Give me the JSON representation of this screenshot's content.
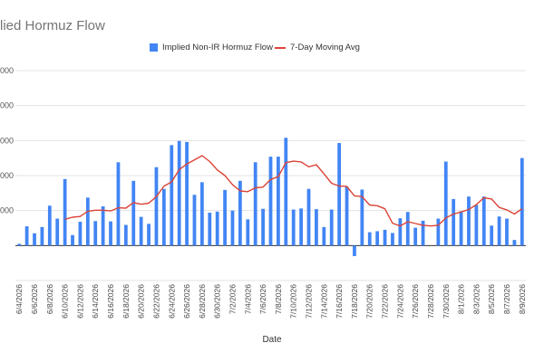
{
  "chart_data": {
    "type": "bar",
    "title": "lied Hormuz Flow",
    "xlabel": "Date",
    "ylabel": "",
    "y_tick_labels_visible": [
      "000",
      "000",
      "000",
      "000",
      "000"
    ],
    "ylim": [
      -1000,
      5000
    ],
    "grid": true,
    "legend_position": "top",
    "categories": [
      "6/4/2026",
      "6/5/2026",
      "6/6/2026",
      "6/7/2026",
      "6/8/2026",
      "6/9/2026",
      "6/10/2026",
      "6/11/2026",
      "6/12/2026",
      "6/13/2026",
      "6/14/2026",
      "6/15/2026",
      "6/16/2026",
      "6/17/2026",
      "6/18/2026",
      "6/19/2026",
      "6/20/2026",
      "6/21/2026",
      "6/22/2026",
      "6/23/2026",
      "6/24/2026",
      "6/25/2026",
      "6/26/2026",
      "6/27/2026",
      "6/28/2026",
      "6/29/2026",
      "6/30/2026",
      "7/1/2026",
      "7/2/2026",
      "7/3/2026",
      "7/4/2026",
      "7/5/2026",
      "7/6/2026",
      "7/7/2026",
      "7/8/2026",
      "7/9/2026",
      "7/10/2026",
      "7/11/2026",
      "7/12/2026",
      "7/13/2026",
      "7/14/2026",
      "7/15/2026",
      "7/16/2026",
      "7/17/2026",
      "7/18/2026",
      "7/19/2026",
      "7/20/2026",
      "7/21/2026",
      "7/22/2026",
      "7/23/2026",
      "7/24/2026",
      "7/25/2026",
      "7/26/2026",
      "7/27/2026",
      "7/28/2026",
      "7/29/2026",
      "7/30/2026",
      "7/31/2026",
      "8/1/2026",
      "8/2/2026",
      "8/3/2026",
      "8/4/2026",
      "8/5/2026",
      "8/6/2026",
      "8/7/2026",
      "8/8/2026",
      "8/9/2026"
    ],
    "series": [
      {
        "name": "Implied Non-IR Hormuz Flow",
        "type": "bar",
        "color": "#4285f4",
        "values": [
          50,
          550,
          350,
          530,
          1140,
          770,
          1900,
          300,
          680,
          1370,
          700,
          1120,
          690,
          2380,
          590,
          1850,
          820,
          620,
          2240,
          1620,
          2870,
          2990,
          2960,
          1450,
          1810,
          940,
          970,
          1590,
          1000,
          1850,
          750,
          2380,
          1050,
          2540,
          2540,
          3080,
          1030,
          1060,
          1620,
          1040,
          530,
          1030,
          2930,
          1680,
          -300,
          1600,
          380,
          410,
          450,
          360,
          780,
          960,
          510,
          710,
          0,
          770,
          2400,
          1330,
          980,
          1400,
          1160,
          1400,
          570,
          830,
          770,
          160,
          2500
        ]
      },
      {
        "name": "7-Day Moving Avg",
        "type": "line",
        "color": "#db4437",
        "values": [
          null,
          null,
          null,
          null,
          null,
          null,
          750,
          810,
          830,
          980,
          1010,
          1010,
          990,
          1080,
          1070,
          1230,
          1180,
          1210,
          1400,
          1700,
          1820,
          2170,
          2330,
          2450,
          2570,
          2400,
          2160,
          2000,
          1740,
          1560,
          1540,
          1650,
          1670,
          1890,
          1970,
          2370,
          2410,
          2390,
          2250,
          2310,
          2050,
          1780,
          1700,
          1690,
          1420,
          1400,
          1160,
          1140,
          1050,
          640,
          560,
          680,
          630,
          580,
          560,
          580,
          790,
          900,
          960,
          1030,
          1170,
          1370,
          1330,
          1090,
          1020,
          900,
          1050
        ]
      }
    ]
  }
}
